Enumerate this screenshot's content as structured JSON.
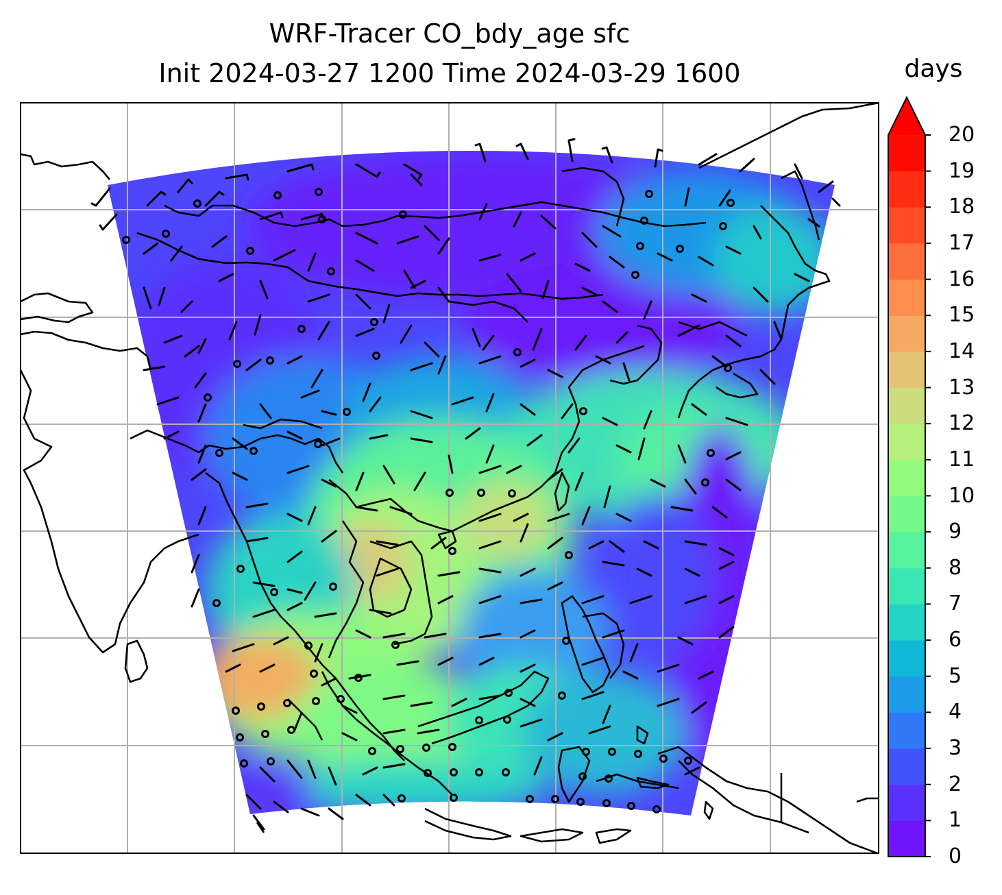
{
  "title": "WRF-Tracer CO_bdy_age sfc",
  "subtitle": "Init 2024-03-27 1200 Time 2024-03-29 1600",
  "colorbar": {
    "units": "days",
    "min": 0,
    "max": 20,
    "extend": "max",
    "ticks": [
      "0",
      "1",
      "2",
      "3",
      "4",
      "5",
      "6",
      "7",
      "8",
      "9",
      "10",
      "11",
      "12",
      "13",
      "14",
      "15",
      "16",
      "17",
      "18",
      "19",
      "20"
    ],
    "colors": [
      "#7015fa",
      "#5c30fb",
      "#4353fb",
      "#3078f7",
      "#1b9be8",
      "#0fb8d6",
      "#23d3c6",
      "#3ae6b3",
      "#56f29d",
      "#74fa89",
      "#93fb7d",
      "#b5f07d",
      "#ccdc7f",
      "#e3c474",
      "#f6a962",
      "#fd8e50",
      "#ff6e3d",
      "#ff4e27",
      "#ff2d14",
      "#ff0b04",
      "#ff0000"
    ]
  },
  "map": {
    "region": "South and Southeast Asia",
    "gridlines": true,
    "coastlines": true,
    "overlay": "wind barbs and calm circles"
  }
}
